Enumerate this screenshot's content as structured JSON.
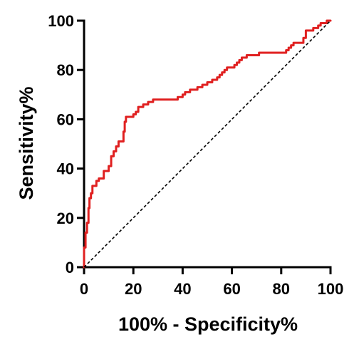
{
  "chart_data": {
    "type": "line",
    "title": "",
    "xlabel": "100% - Specificity%",
    "ylabel": "Sensitivity%",
    "xlim": [
      0,
      100
    ],
    "ylim": [
      0,
      100
    ],
    "x_ticks": [
      0,
      20,
      40,
      60,
      80,
      100
    ],
    "y_ticks": [
      0,
      20,
      40,
      60,
      80,
      100
    ],
    "grid": false,
    "legend": "none",
    "series": [
      {
        "style": "step-line",
        "color": "#e02020",
        "points": [
          [
            0,
            0
          ],
          [
            0,
            8
          ],
          [
            0.6,
            8
          ],
          [
            0.6,
            14
          ],
          [
            1.2,
            14
          ],
          [
            1.2,
            18
          ],
          [
            1.8,
            18
          ],
          [
            1.8,
            24
          ],
          [
            2.2,
            24
          ],
          [
            2.2,
            28
          ],
          [
            2.8,
            28
          ],
          [
            2.8,
            30
          ],
          [
            3.4,
            30
          ],
          [
            3.4,
            33
          ],
          [
            5.0,
            33
          ],
          [
            5.0,
            35
          ],
          [
            6.0,
            35
          ],
          [
            6.0,
            36
          ],
          [
            8.0,
            36
          ],
          [
            8.0,
            39
          ],
          [
            10.0,
            39
          ],
          [
            10.0,
            41
          ],
          [
            11.0,
            41
          ],
          [
            11.0,
            45
          ],
          [
            12.0,
            45
          ],
          [
            12.0,
            47
          ],
          [
            13.0,
            47
          ],
          [
            13.0,
            49
          ],
          [
            14.0,
            49
          ],
          [
            14.0,
            51
          ],
          [
            16.0,
            51
          ],
          [
            16.0,
            55
          ],
          [
            16.5,
            55
          ],
          [
            16.5,
            59
          ],
          [
            17.0,
            59
          ],
          [
            17.0,
            61
          ],
          [
            20.0,
            61
          ],
          [
            20.0,
            62
          ],
          [
            21.0,
            62
          ],
          [
            21.0,
            63
          ],
          [
            22.0,
            63
          ],
          [
            22.0,
            65
          ],
          [
            24.0,
            65
          ],
          [
            24.0,
            66
          ],
          [
            26.0,
            66
          ],
          [
            26.0,
            67
          ],
          [
            28.0,
            67
          ],
          [
            28.0,
            68
          ],
          [
            38.0,
            68
          ],
          [
            38.0,
            69
          ],
          [
            40.0,
            69
          ],
          [
            40.0,
            70
          ],
          [
            41.0,
            70
          ],
          [
            41.0,
            71
          ],
          [
            43.0,
            71
          ],
          [
            43.0,
            72
          ],
          [
            46.0,
            72
          ],
          [
            46.0,
            73
          ],
          [
            48.0,
            73
          ],
          [
            48.0,
            74
          ],
          [
            50.0,
            74
          ],
          [
            50.0,
            75
          ],
          [
            52.0,
            75
          ],
          [
            52.0,
            76
          ],
          [
            54.0,
            76
          ],
          [
            54.0,
            77
          ],
          [
            55.0,
            77
          ],
          [
            55.0,
            78
          ],
          [
            56.0,
            78
          ],
          [
            56.0,
            79
          ],
          [
            57.0,
            79
          ],
          [
            57.0,
            80
          ],
          [
            58.0,
            80
          ],
          [
            58.0,
            81
          ],
          [
            61.0,
            81
          ],
          [
            61.0,
            82
          ],
          [
            62.0,
            82
          ],
          [
            62.0,
            83
          ],
          [
            63.0,
            83
          ],
          [
            63.0,
            84
          ],
          [
            64.0,
            84
          ],
          [
            64.0,
            85
          ],
          [
            66.0,
            85
          ],
          [
            66.0,
            86
          ],
          [
            71.0,
            86
          ],
          [
            71.0,
            87
          ],
          [
            82.0,
            87
          ],
          [
            82.0,
            88
          ],
          [
            83.0,
            88
          ],
          [
            83.0,
            89
          ],
          [
            84.0,
            89
          ],
          [
            84.0,
            90
          ],
          [
            85.0,
            90
          ],
          [
            85.0,
            91
          ],
          [
            89.0,
            91
          ],
          [
            89.0,
            93
          ],
          [
            90.0,
            93
          ],
          [
            90.0,
            96
          ],
          [
            93.0,
            96
          ],
          [
            93.0,
            97
          ],
          [
            95.0,
            97
          ],
          [
            95.0,
            98
          ],
          [
            96.0,
            98
          ],
          [
            96.0,
            99
          ],
          [
            98.5,
            99
          ],
          [
            98.5,
            100
          ],
          [
            100.0,
            100
          ]
        ]
      },
      {
        "style": "dashed-reference",
        "color": "#000000",
        "points": [
          [
            0,
            0
          ],
          [
            100,
            100
          ]
        ]
      }
    ]
  }
}
